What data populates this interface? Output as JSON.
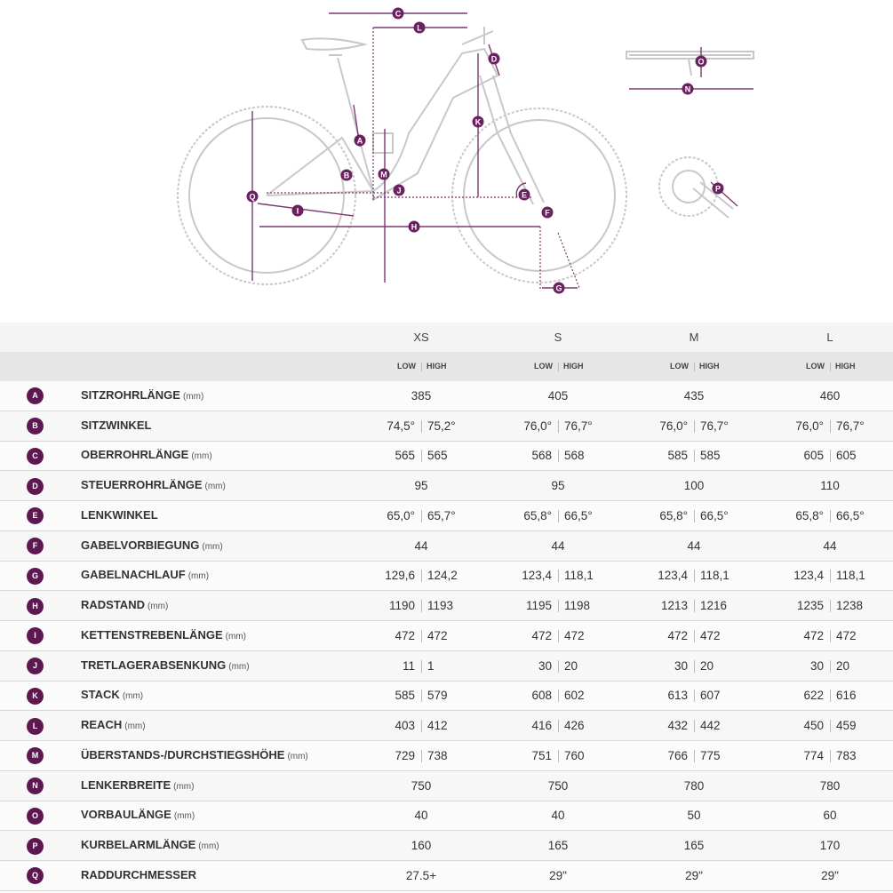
{
  "diagram": {
    "labels": [
      "C",
      "L",
      "D",
      "K",
      "A",
      "B",
      "M",
      "J",
      "Q",
      "I",
      "H",
      "E",
      "F",
      "G",
      "O",
      "N",
      "P"
    ]
  },
  "table": {
    "sizes": [
      "XS",
      "S",
      "M",
      "L"
    ],
    "low_label": "LOW",
    "high_label": "HIGH",
    "rows": [
      {
        "letter": "A",
        "name": "SITZROHRLÄNGE",
        "unit": "(mm)",
        "values": [
          "385",
          "405",
          "435",
          "460"
        ]
      },
      {
        "letter": "B",
        "name": "SITZWINKEL",
        "values": [
          [
            "74,5°",
            "75,2°"
          ],
          [
            "76,0°",
            "76,7°"
          ],
          [
            "76,0°",
            "76,7°"
          ],
          [
            "76,0°",
            "76,7°"
          ]
        ]
      },
      {
        "letter": "C",
        "name": "OBERROHRLÄNGE",
        "unit": "(mm)",
        "values": [
          [
            "565",
            "565"
          ],
          [
            "568",
            "568"
          ],
          [
            "585",
            "585"
          ],
          [
            "605",
            "605"
          ]
        ]
      },
      {
        "letter": "D",
        "name": "STEUERROHRLÄNGE",
        "unit": "(mm)",
        "values": [
          "95",
          "95",
          "100",
          "110"
        ]
      },
      {
        "letter": "E",
        "name": "LENKWINKEL",
        "values": [
          [
            "65,0°",
            "65,7°"
          ],
          [
            "65,8°",
            "66,5°"
          ],
          [
            "65,8°",
            "66,5°"
          ],
          [
            "65,8°",
            "66,5°"
          ]
        ]
      },
      {
        "letter": "F",
        "name": "GABELVORBIEGUNG",
        "unit": "(mm)",
        "values": [
          "44",
          "44",
          "44",
          "44"
        ]
      },
      {
        "letter": "G",
        "name": "GABELNACHLAUF",
        "unit": "(mm)",
        "values": [
          [
            "129,6",
            "124,2"
          ],
          [
            "123,4",
            "118,1"
          ],
          [
            "123,4",
            "118,1"
          ],
          [
            "123,4",
            "118,1"
          ]
        ]
      },
      {
        "letter": "H",
        "name": "RADSTAND",
        "unit": "(mm)",
        "values": [
          [
            "1190",
            "1193"
          ],
          [
            "1195",
            "1198"
          ],
          [
            "1213",
            "1216"
          ],
          [
            "1235",
            "1238"
          ]
        ]
      },
      {
        "letter": "I",
        "name": "KETTENSTREBENLÄNGE",
        "unit": "(mm)",
        "values": [
          [
            "472",
            "472"
          ],
          [
            "472",
            "472"
          ],
          [
            "472",
            "472"
          ],
          [
            "472",
            "472"
          ]
        ]
      },
      {
        "letter": "J",
        "name": "TRETLAGERABSENKUNG",
        "unit": "(mm)",
        "values": [
          [
            "11",
            "1"
          ],
          [
            "30",
            "20"
          ],
          [
            "30",
            "20"
          ],
          [
            "30",
            "20"
          ]
        ]
      },
      {
        "letter": "K",
        "name": "STACK",
        "unit": "(mm)",
        "values": [
          [
            "585",
            "579"
          ],
          [
            "608",
            "602"
          ],
          [
            "613",
            "607"
          ],
          [
            "622",
            "616"
          ]
        ]
      },
      {
        "letter": "L",
        "name": "REACH",
        "unit": "(mm)",
        "values": [
          [
            "403",
            "412"
          ],
          [
            "416",
            "426"
          ],
          [
            "432",
            "442"
          ],
          [
            "450",
            "459"
          ]
        ]
      },
      {
        "letter": "M",
        "name": "ÜBERSTANDS-/DURCHSTIEGSHÖHE",
        "unit": "(mm)",
        "values": [
          [
            "729",
            "738"
          ],
          [
            "751",
            "760"
          ],
          [
            "766",
            "775"
          ],
          [
            "774",
            "783"
          ]
        ]
      },
      {
        "letter": "N",
        "name": "LENKERBREITE",
        "unit": "(mm)",
        "values": [
          "750",
          "750",
          "780",
          "780"
        ]
      },
      {
        "letter": "O",
        "name": "VORBAULÄNGE",
        "unit": "(mm)",
        "values": [
          "40",
          "40",
          "50",
          "60"
        ]
      },
      {
        "letter": "P",
        "name": "KURBELARMLÄNGE",
        "unit": "(mm)",
        "values": [
          "160",
          "165",
          "165",
          "170"
        ]
      },
      {
        "letter": "Q",
        "name": "RADDURCHMESSER",
        "values": [
          "27.5+",
          "29\"",
          "29\"",
          "29\""
        ]
      }
    ]
  }
}
